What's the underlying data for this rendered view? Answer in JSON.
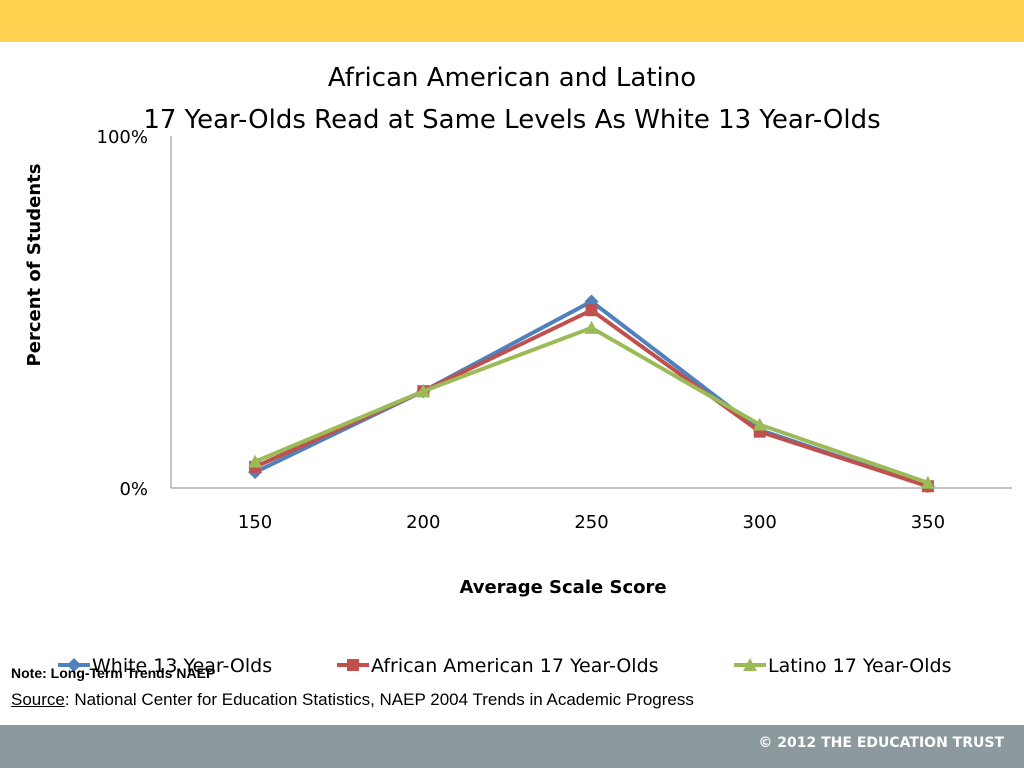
{
  "colors": {
    "top_band": "#FFD34F",
    "bottom_band": "#8C9A9E",
    "axis": "#888888",
    "white_series": "#4F81BD",
    "african_american_series": "#C0504D",
    "latino_series": "#9BBB59"
  },
  "footer": {
    "copyright": "© 2012 THE EDUCATION TRUST"
  },
  "note": "Note:  Long-Term Trends NAEP",
  "source": {
    "label": "Source",
    "text": ":  National Center for Education Statistics, NAEP 2004 Trends in Academic Progress"
  },
  "chart_data": {
    "type": "line",
    "title": [
      "African American and Latino",
      "17 Year-Olds Read at Same Levels As White 13 Year-Olds"
    ],
    "xlabel": "Average Scale Score",
    "ylabel": "Percent of Students",
    "x": [
      150,
      200,
      250,
      300,
      350
    ],
    "x_tick_labels": [
      "150",
      "200",
      "250",
      "300",
      "350"
    ],
    "y_tick_labels": [
      "0%",
      "100%"
    ],
    "ylim": [
      0,
      100
    ],
    "grid": false,
    "legend_position": "bottom",
    "series": [
      {
        "name": "White 13 Year-Olds",
        "marker": "diamond",
        "values": [
          4.5,
          27.5,
          53,
          16.5,
          0.5
        ]
      },
      {
        "name": "African American 17 Year-Olds",
        "marker": "square",
        "values": [
          6,
          27.5,
          50.5,
          16,
          0.5
        ]
      },
      {
        "name": "Latino 17 Year-Olds",
        "marker": "triangle",
        "values": [
          7.5,
          27.5,
          45.5,
          18,
          1.5
        ]
      }
    ]
  }
}
